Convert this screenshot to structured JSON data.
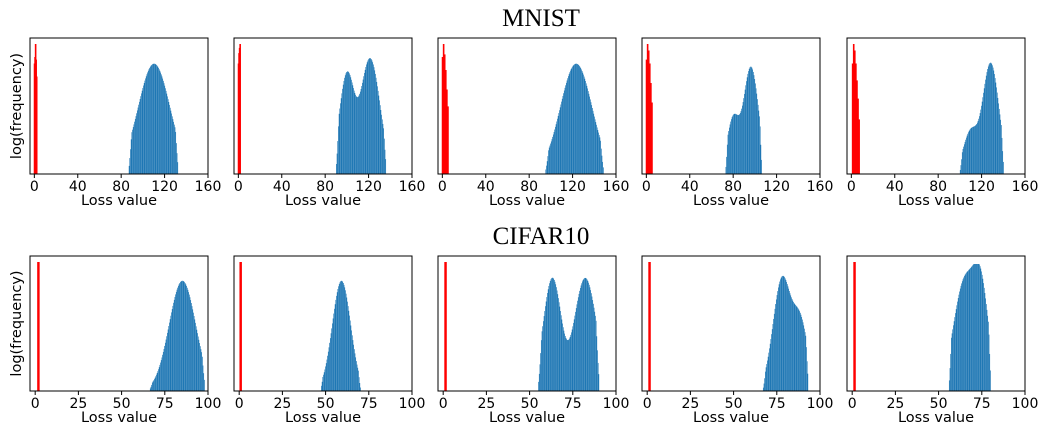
{
  "section_titles": [
    "MNIST",
    "CIFAR10"
  ],
  "colors": {
    "normal": "#1f77b4",
    "anomalous": "#ff0000"
  },
  "chart_data": [
    {
      "type": "bar",
      "dataset": "MNIST",
      "xlabel": "Loss value",
      "ylabel": "log(frequency)",
      "xlim": [
        -4,
        160
      ],
      "xticks": [
        0,
        40,
        80,
        120,
        160
      ],
      "red": [
        [
          0,
          0.85
        ],
        [
          0.5,
          0.9
        ],
        [
          1.0,
          1.0
        ],
        [
          1.5,
          0.88
        ],
        [
          2.0,
          0.75
        ]
      ],
      "blue": {
        "min": 87,
        "max": 132,
        "peaks": [
          {
            "mu": 110,
            "sigma": 12,
            "h": 0.8
          }
        ],
        "pow": 1.5
      }
    },
    {
      "type": "bar",
      "dataset": "MNIST",
      "xlabel": "Loss value",
      "ylabel": "",
      "xlim": [
        -4,
        160
      ],
      "xticks": [
        0,
        40,
        80,
        120,
        160
      ],
      "red": [
        [
          0,
          0.85
        ],
        [
          0.5,
          0.93
        ],
        [
          1.0,
          0.97
        ],
        [
          1.5,
          1.0
        ]
      ],
      "blue": {
        "min": 90,
        "max": 136,
        "peaks": [
          {
            "mu": 100,
            "sigma": 6,
            "h": 0.7
          },
          {
            "mu": 121,
            "sigma": 7.5,
            "h": 0.86
          }
        ],
        "pow": 1.5
      }
    },
    {
      "type": "bar",
      "dataset": "MNIST",
      "xlabel": "Loss value",
      "ylabel": "",
      "xlim": [
        -4,
        160
      ],
      "xticks": [
        0,
        40,
        80,
        120,
        160
      ],
      "red": [
        [
          0,
          0.9
        ],
        [
          1.0,
          1.0
        ],
        [
          2.0,
          0.92
        ],
        [
          3.0,
          0.8
        ],
        [
          4.0,
          0.65
        ],
        [
          5.0,
          0.52
        ]
      ],
      "blue": {
        "min": 95,
        "max": 148,
        "peaks": [
          {
            "mu": 123,
            "sigma": 12,
            "h": 0.8
          }
        ],
        "pow": 1.5
      }
    },
    {
      "type": "bar",
      "dataset": "MNIST",
      "xlabel": "Loss value",
      "ylabel": "",
      "xlim": [
        -4,
        160
      ],
      "xticks": [
        0,
        40,
        80,
        120,
        160
      ],
      "red": [
        [
          0,
          0.88
        ],
        [
          1.0,
          1.0
        ],
        [
          2.0,
          0.95
        ],
        [
          3.0,
          0.85
        ],
        [
          4.0,
          0.7
        ],
        [
          5.0,
          0.55
        ]
      ],
      "blue": {
        "min": 73,
        "max": 106,
        "peaks": [
          {
            "mu": 96,
            "sigma": 6,
            "h": 0.78
          },
          {
            "mu": 80,
            "sigma": 5,
            "h": 0.32
          }
        ],
        "pow": 1.4
      }
    },
    {
      "type": "bar",
      "dataset": "MNIST",
      "xlabel": "Loss value",
      "ylabel": "",
      "xlim": [
        -4,
        160
      ],
      "xticks": [
        0,
        40,
        80,
        120,
        160
      ],
      "red": [
        [
          1,
          0.85
        ],
        [
          2.0,
          1.0
        ],
        [
          3.0,
          0.95
        ],
        [
          4.0,
          0.85
        ],
        [
          5.0,
          0.72
        ],
        [
          6.0,
          0.58
        ],
        [
          7.0,
          0.42
        ]
      ],
      "blue": {
        "min": 100,
        "max": 140,
        "peaks": [
          {
            "mu": 128,
            "sigma": 6.5,
            "h": 0.82
          },
          {
            "mu": 110,
            "sigma": 6,
            "h": 0.22
          }
        ],
        "pow": 1.4
      }
    },
    {
      "type": "bar",
      "dataset": "CIFAR10",
      "xlabel": "Loss value",
      "ylabel": "log(frequency)",
      "xlim": [
        -3,
        100
      ],
      "xticks": [
        0,
        25,
        50,
        75,
        100
      ],
      "red": [
        [
          1.5,
          1.0
        ],
        [
          2.0,
          1.0
        ]
      ],
      "blue": {
        "min": 66,
        "max": 98,
        "peaks": [
          {
            "mu": 85,
            "sigma": 6.5,
            "h": 0.82
          }
        ],
        "pow": 1.4
      }
    },
    {
      "type": "bar",
      "dataset": "CIFAR10",
      "xlabel": "Loss value",
      "ylabel": "",
      "xlim": [
        -3,
        100
      ],
      "xticks": [
        0,
        25,
        50,
        75,
        100
      ],
      "red": [
        [
          0.5,
          1.0
        ],
        [
          1.0,
          1.0
        ]
      ],
      "blue": {
        "min": 47,
        "max": 70,
        "peaks": [
          {
            "mu": 59,
            "sigma": 4.5,
            "h": 0.82
          }
        ],
        "pow": 1.4
      }
    },
    {
      "type": "bar",
      "dataset": "CIFAR10",
      "xlabel": "Loss value",
      "ylabel": "",
      "xlim": [
        -3,
        100
      ],
      "xticks": [
        0,
        25,
        50,
        75,
        100
      ],
      "red": [
        [
          1.0,
          1.0
        ],
        [
          1.5,
          1.0
        ]
      ],
      "blue": {
        "min": 55,
        "max": 90,
        "peaks": [
          {
            "mu": 63,
            "sigma": 4.5,
            "h": 0.85
          },
          {
            "mu": 82,
            "sigma": 5.5,
            "h": 0.85
          }
        ],
        "pow": 1.4
      }
    },
    {
      "type": "bar",
      "dataset": "CIFAR10",
      "xlabel": "Loss value",
      "ylabel": "",
      "xlim": [
        -3,
        100
      ],
      "xticks": [
        0,
        25,
        50,
        75,
        100
      ],
      "red": [
        [
          1.0,
          1.0
        ],
        [
          1.5,
          1.0
        ]
      ],
      "blue": {
        "min": 67,
        "max": 93,
        "peaks": [
          {
            "mu": 78,
            "sigma": 4.5,
            "h": 0.85
          },
          {
            "mu": 88,
            "sigma": 4,
            "h": 0.45
          }
        ],
        "pow": 1.4
      }
    },
    {
      "type": "bar",
      "dataset": "CIFAR10",
      "xlabel": "Loss value",
      "ylabel": "",
      "xlim": [
        -3,
        100
      ],
      "xticks": [
        0,
        25,
        50,
        75,
        100
      ],
      "red": [
        [
          1.0,
          1.0
        ],
        [
          1.5,
          1.0
        ]
      ],
      "blue": {
        "min": 56,
        "max": 80,
        "peaks": [
          {
            "mu": 65,
            "sigma": 5.5,
            "h": 0.82
          },
          {
            "mu": 74,
            "sigma": 4,
            "h": 0.75
          }
        ],
        "pow": 1.4
      }
    }
  ]
}
